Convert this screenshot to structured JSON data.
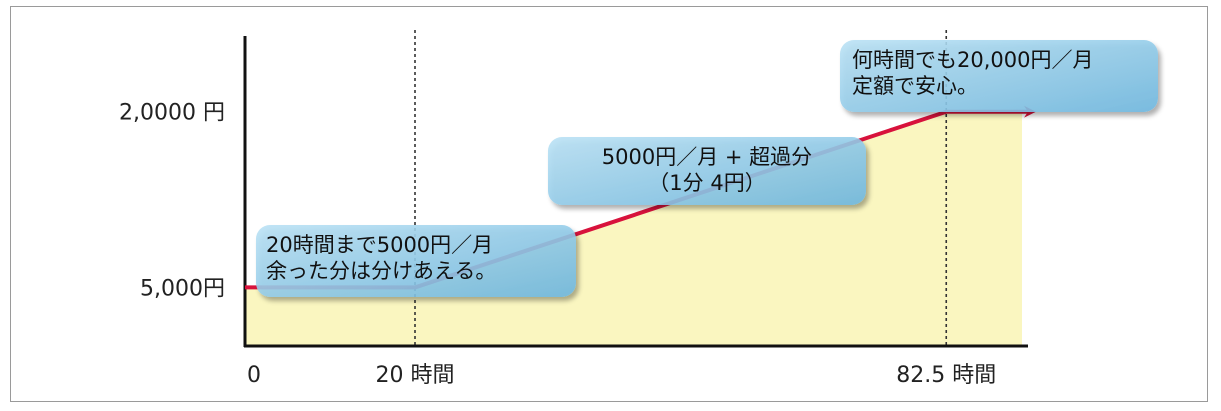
{
  "chart_data": {
    "type": "area",
    "x": [
      0,
      20,
      82.5,
      95
    ],
    "y": [
      5000,
      5000,
      20000,
      20000
    ],
    "y_tick_labels": [
      "5,000円",
      "2,0000 円"
    ],
    "y_tick_values": [
      5000,
      20000
    ],
    "x_tick_labels": [
      "0",
      "20 時間",
      "82.5 時間"
    ],
    "x_tick_values": [
      0,
      20,
      82.5
    ],
    "xlim": [
      0,
      100
    ],
    "ylim": [
      0,
      28000
    ],
    "grid": false,
    "colors": {
      "fill": "#faf6c0",
      "line": "#d8123c",
      "guide": "#333333",
      "bubble": "#8fcbe9"
    },
    "annotations": [
      {
        "id": "a1",
        "lines": [
          "20時間まで5000円／月",
          "余った分は分けあえる。"
        ]
      },
      {
        "id": "a2",
        "lines": [
          "5000円／月 + 超過分",
          "（1分 4円）"
        ]
      },
      {
        "id": "a3",
        "lines": [
          "何時間でも20,000円／月",
          "定額で安心。"
        ]
      }
    ]
  }
}
